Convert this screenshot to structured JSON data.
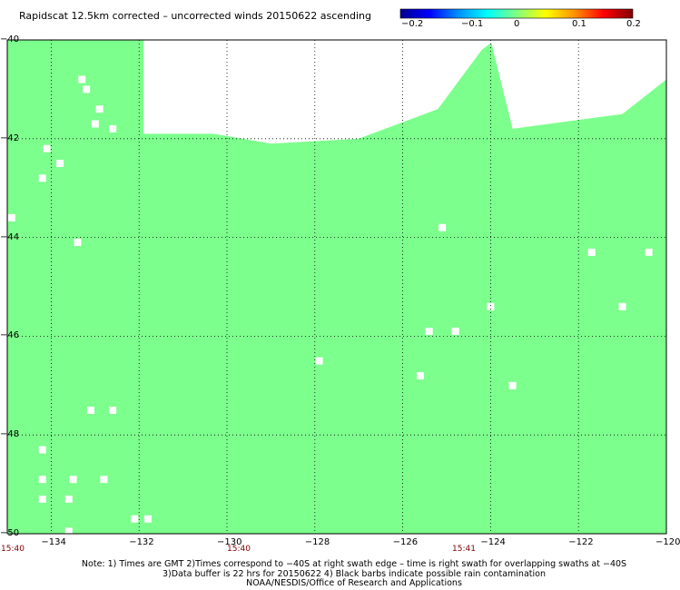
{
  "title": "Rapidscat 12.5km corrected – uncorrected winds 20150622 ascending",
  "colorbar": {
    "ticks": [
      "−0.2",
      "−0.1",
      "0",
      "0.1",
      "0.2"
    ],
    "min": -0.2,
    "max": 0.2,
    "colors": [
      "#000090",
      "#0000ff",
      "#0090ff",
      "#00ffff",
      "#80ff80",
      "#ffff00",
      "#ff9000",
      "#ff0000",
      "#800000"
    ]
  },
  "fill_color": "#7cff8c",
  "missing_color": "#ffffff",
  "lat_labels": [
    "−40",
    "−42",
    "−44",
    "−46",
    "−48",
    "−50"
  ],
  "lon_labels": [
    "−134",
    "−132",
    "−130",
    "−128",
    "−126",
    "−124",
    "−122",
    "−120"
  ],
  "time_labels": [
    "15:40",
    "15:40",
    "15:41"
  ],
  "notes": [
    "Note: 1) Times are GMT 2)Times correspond to −40S at right swath edge – time is right swath for overlapping swaths at −40S",
    "3)Data buffer is 22 hrs for 20150622 4) Black barbs indicate possible rain contamination",
    "NOAA/NESDIS/Office of Research and Applications"
  ],
  "chart_data": {
    "type": "heatmap",
    "title": "Rapidscat 12.5km corrected – uncorrected winds 20150622 ascending",
    "x_range": [
      -135,
      -120
    ],
    "y_range": [
      -50,
      -40
    ],
    "x_ticks": [
      -134,
      -132,
      -130,
      -128,
      -126,
      -124,
      -122,
      -120
    ],
    "y_ticks": [
      -40,
      -42,
      -44,
      -46,
      -48,
      -50
    ],
    "grid": true,
    "value_shown": 0,
    "colorbar_range": [
      -0.2,
      0.2
    ],
    "no_data_region_north_edge": [
      [
        -131.9,
        -41.9
      ],
      [
        -130.3,
        -41.9
      ],
      [
        -129.0,
        -42.1
      ],
      [
        -127.0,
        -42.0
      ],
      [
        -125.2,
        -41.4
      ],
      [
        -124.2,
        -40.2
      ],
      [
        -123.9,
        -40.0
      ]
    ],
    "no_data_region_east_edge": [
      [
        -124.0,
        -40.0
      ],
      [
        -123.5,
        -41.8
      ],
      [
        -121.0,
        -41.5
      ],
      [
        -120.0,
        -40.8
      ]
    ],
    "missing_cells": [
      [
        -133.3,
        -40.8
      ],
      [
        -133.2,
        -41.0
      ],
      [
        -132.9,
        -41.4
      ],
      [
        -133.0,
        -41.7
      ],
      [
        -134.1,
        -42.2
      ],
      [
        -133.8,
        -42.5
      ],
      [
        -134.2,
        -42.8
      ],
      [
        -134.9,
        -43.6
      ],
      [
        -133.4,
        -44.1
      ],
      [
        -132.6,
        -41.8
      ],
      [
        -125.1,
        -43.8
      ],
      [
        -124.0,
        -45.4
      ],
      [
        -121.7,
        -44.3
      ],
      [
        -120.4,
        -44.3
      ],
      [
        -121.0,
        -45.4
      ],
      [
        -125.4,
        -45.9
      ],
      [
        -124.8,
        -45.9
      ],
      [
        -127.9,
        -46.5
      ],
      [
        -125.6,
        -46.8
      ],
      [
        -123.5,
        -47.0
      ],
      [
        -133.1,
        -47.5
      ],
      [
        -132.6,
        -47.5
      ],
      [
        -134.2,
        -48.3
      ],
      [
        -134.2,
        -48.9
      ],
      [
        -133.5,
        -48.9
      ],
      [
        -132.8,
        -48.9
      ],
      [
        -134.2,
        -49.3
      ],
      [
        -133.6,
        -49.3
      ],
      [
        -132.1,
        -49.7
      ],
      [
        -131.8,
        -49.7
      ],
      [
        -133.6,
        -49.95
      ]
    ]
  }
}
